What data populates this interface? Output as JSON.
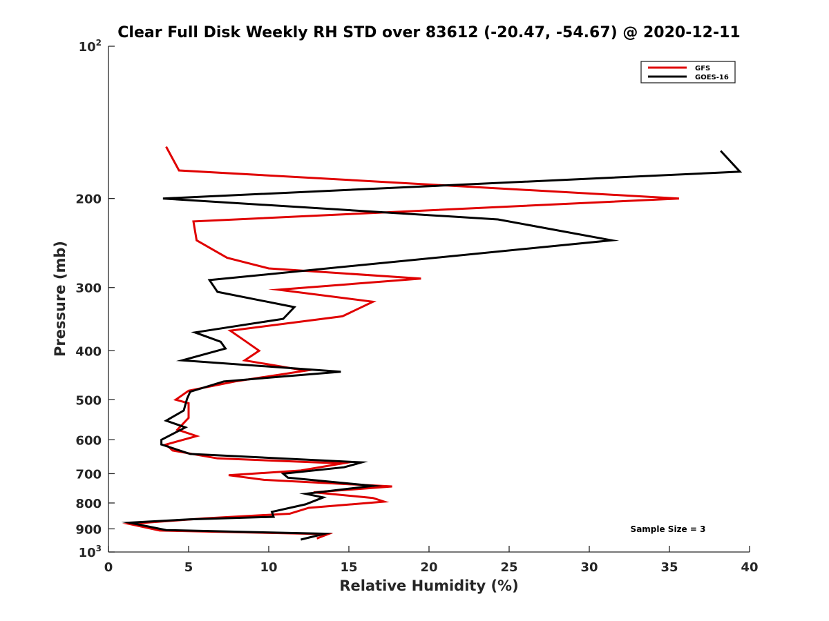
{
  "chart_data": {
    "type": "line",
    "title": "Clear Full Disk Weekly RH STD over 83612 (-20.47, -54.67) @ 2020-12-11",
    "xlabel": "Relative Humidity (%)",
    "ylabel": "Pressure (mb)",
    "xlim": [
      0,
      40
    ],
    "ylim": [
      100,
      1000
    ],
    "y_scale": "log",
    "y_reversed": true,
    "x_ticks": [
      "0",
      "5",
      "10",
      "15",
      "20",
      "25",
      "30",
      "35",
      "40"
    ],
    "x_tick_values": [
      0,
      5,
      10,
      15,
      20,
      25,
      30,
      35,
      40
    ],
    "y_ticks": [
      {
        "value": 100,
        "base": "10",
        "exp": "2"
      },
      {
        "value": 200,
        "label": "200"
      },
      {
        "value": 300,
        "label": "300"
      },
      {
        "value": 400,
        "label": "400"
      },
      {
        "value": 500,
        "label": "500"
      },
      {
        "value": 600,
        "label": "600"
      },
      {
        "value": 700,
        "label": "700"
      },
      {
        "value": 800,
        "label": "800"
      },
      {
        "value": 900,
        "label": "900"
      },
      {
        "value": 1000,
        "base": "10",
        "exp": "3"
      }
    ],
    "legend_position": "top-right",
    "annotation": "Sample Size = 3",
    "series": [
      {
        "name": "GFS",
        "color": "#e00000",
        "points": [
          [
            3.6,
            158
          ],
          [
            4.4,
            176
          ],
          [
            35.6,
            200
          ],
          [
            5.3,
            222
          ],
          [
            5.5,
            242
          ],
          [
            7.4,
            262
          ],
          [
            10.0,
            275
          ],
          [
            19.5,
            288
          ],
          [
            10.6,
            303
          ],
          [
            16.5,
            320
          ],
          [
            14.6,
            342
          ],
          [
            7.6,
            365
          ],
          [
            8.5,
            382
          ],
          [
            9.4,
            400
          ],
          [
            8.5,
            418
          ],
          [
            12.3,
            438
          ],
          [
            7.9,
            460
          ],
          [
            5.0,
            480
          ],
          [
            4.2,
            500
          ],
          [
            5.0,
            508
          ],
          [
            5.0,
            543
          ],
          [
            4.3,
            573
          ],
          [
            5.5,
            590
          ],
          [
            3.6,
            613
          ],
          [
            4.0,
            630
          ],
          [
            6.8,
            653
          ],
          [
            14.6,
            668
          ],
          [
            12.0,
            690
          ],
          [
            7.5,
            705
          ],
          [
            9.7,
            720
          ],
          [
            17.7,
            742
          ],
          [
            12.8,
            762
          ],
          [
            16.5,
            782
          ],
          [
            17.2,
            795
          ],
          [
            12.5,
            818
          ],
          [
            11.3,
            840
          ],
          [
            6.0,
            858
          ],
          [
            1.3,
            880
          ],
          [
            3.2,
            907
          ],
          [
            13.7,
            922
          ],
          [
            13.0,
            940
          ]
        ]
      },
      {
        "name": "GOES-16",
        "color": "#000000",
        "points": [
          [
            38.2,
            161
          ],
          [
            39.4,
            177
          ],
          [
            3.4,
            200
          ],
          [
            24.3,
            220
          ],
          [
            31.4,
            242
          ],
          [
            6.3,
            290
          ],
          [
            6.8,
            306
          ],
          [
            11.6,
            328
          ],
          [
            10.9,
            346
          ],
          [
            5.4,
            368
          ],
          [
            7.0,
            384
          ],
          [
            7.3,
            396
          ],
          [
            4.6,
            418
          ],
          [
            14.5,
            440
          ],
          [
            7.2,
            460
          ],
          [
            5.1,
            482
          ],
          [
            4.9,
            498
          ],
          [
            4.7,
            525
          ],
          [
            3.6,
            550
          ],
          [
            4.8,
            567
          ],
          [
            3.3,
            600
          ],
          [
            3.3,
            613
          ],
          [
            5.1,
            640
          ],
          [
            15.8,
            665
          ],
          [
            14.7,
            680
          ],
          [
            10.9,
            700
          ],
          [
            11.2,
            713
          ],
          [
            16.5,
            740
          ],
          [
            12.3,
            767
          ],
          [
            13.4,
            780
          ],
          [
            12.3,
            805
          ],
          [
            10.2,
            833
          ],
          [
            10.3,
            852
          ],
          [
            5.0,
            862
          ],
          [
            1.3,
            875
          ],
          [
            3.6,
            905
          ],
          [
            13.5,
            920
          ],
          [
            12.0,
            945
          ]
        ]
      }
    ]
  }
}
